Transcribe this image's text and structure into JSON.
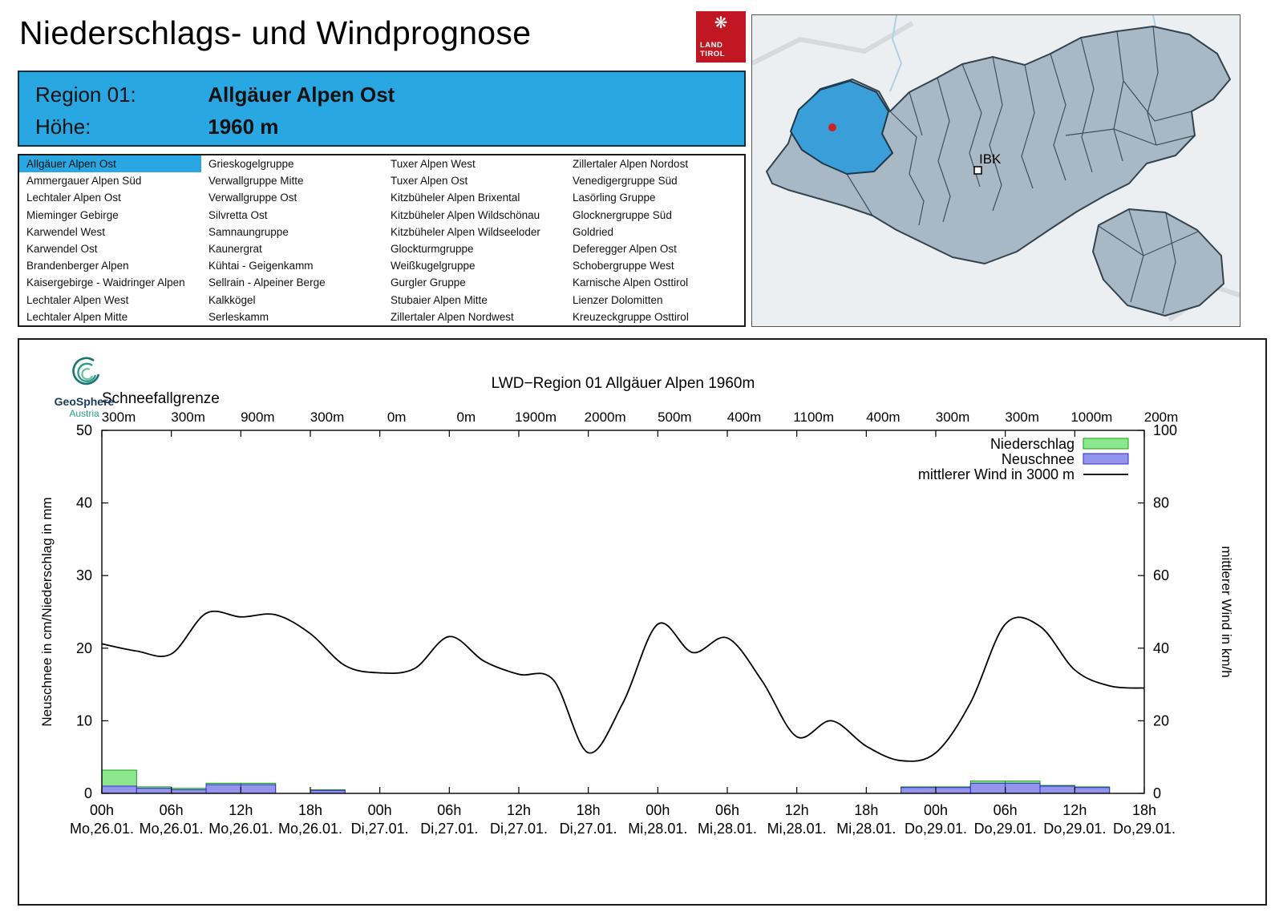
{
  "header": {
    "title": "Niederschlags- und Windprognose"
  },
  "badge": {
    "line1": "LAND",
    "line2": "TIROL",
    "color": "#c01722"
  },
  "map": {
    "marker_label": "IBK",
    "highlight_color": "#3a9fd8",
    "region_fill": "#a9b8c5",
    "border_color": "#33434f"
  },
  "region_header": {
    "label1": "Region 01:",
    "value1": "Allgäuer Alpen Ost",
    "label2": "Höhe:",
    "value2": "1960 m",
    "background": "#29a7e2"
  },
  "regions": {
    "selected": "Allgäuer Alpen Ost",
    "columns": [
      [
        "Allgäuer Alpen Ost",
        "Ammergauer Alpen Süd",
        "Lechtaler Alpen Ost",
        "Mieminger Gebirge",
        "Karwendel West",
        "Karwendel Ost",
        "Brandenberger Alpen",
        "Kaisergebirge - Waidringer Alpen",
        "Lechtaler Alpen West",
        "Lechtaler Alpen Mitte"
      ],
      [
        "Grieskogelgruppe",
        "Verwallgruppe Mitte",
        "Verwallgruppe Ost",
        "Silvretta Ost",
        "Samnaungruppe",
        "Kaunergrat",
        "Kühtai - Geigenkamm",
        "Sellrain - Alpeiner Berge",
        "Kalkkögel",
        "Serleskamm"
      ],
      [
        "Tuxer Alpen West",
        "Tuxer Alpen Ost",
        "Kitzbüheler Alpen Brixental",
        "Kitzbüheler Alpen Wildschönau",
        "Kitzbüheler Alpen Wildseeloder",
        "Glockturmgruppe",
        "Weißkugelgruppe",
        "Gurgler Gruppe",
        "Stubaier Alpen Mitte",
        "Zillertaler Alpen Nordwest"
      ],
      [
        "Zillertaler Alpen Nordost",
        "Venedigergruppe Süd",
        "Lasörling Gruppe",
        "Glocknergruppe Süd",
        "Goldried",
        "Deferegger Alpen Ost",
        "Schobergruppe West",
        "Karnische Alpen Osttirol",
        "Lienzer Dolomitten",
        "Kreuzeckgruppe Osttirol"
      ]
    ]
  },
  "logo": {
    "name": "GeoSphere",
    "sub": "Austria"
  },
  "chart_data": {
    "type": "bar",
    "title": "LWD−Region 01 Allgäuer Alpen 1960m",
    "snowline": {
      "label": "Schneefallgrenze",
      "values": [
        "300m",
        "300m",
        "900m",
        "300m",
        "0m",
        "0m",
        "1900m",
        "2000m",
        "500m",
        "400m",
        "1100m",
        "400m",
        "300m",
        "300m",
        "1000m",
        "200m"
      ]
    },
    "x_ticks": [
      {
        "hour": "00h",
        "date": "Mo,26.01."
      },
      {
        "hour": "06h",
        "date": "Mo,26.01."
      },
      {
        "hour": "12h",
        "date": "Mo,26.01."
      },
      {
        "hour": "18h",
        "date": "Mo,26.01."
      },
      {
        "hour": "00h",
        "date": "Di,27.01."
      },
      {
        "hour": "06h",
        "date": "Di,27.01."
      },
      {
        "hour": "12h",
        "date": "Di,27.01."
      },
      {
        "hour": "18h",
        "date": "Di,27.01."
      },
      {
        "hour": "00h",
        "date": "Mi,28.01."
      },
      {
        "hour": "06h",
        "date": "Mi,28.01."
      },
      {
        "hour": "12h",
        "date": "Mi,28.01."
      },
      {
        "hour": "18h",
        "date": "Mi,28.01."
      },
      {
        "hour": "00h",
        "date": "Do,29.01."
      },
      {
        "hour": "06h",
        "date": "Do,29.01."
      },
      {
        "hour": "12h",
        "date": "Do,29.01."
      },
      {
        "hour": "18h",
        "date": "Do,29.01."
      }
    ],
    "x_range_hours": [
      0,
      90
    ],
    "ylabel_left": "Neuschnee in cm/Niederschlag in mm",
    "ylabel_right": "mittlerer Wind in km/h",
    "ylim_left": [
      0,
      50
    ],
    "ylim_right": [
      0,
      100
    ],
    "yticks_left": [
      0,
      10,
      20,
      30,
      40,
      50
    ],
    "yticks_right": [
      0,
      20,
      40,
      60,
      80,
      100
    ],
    "legend": [
      {
        "label": "Niederschlag",
        "type": "box",
        "color": "#8DE88D",
        "border": "#18A018"
      },
      {
        "label": "Neuschnee",
        "type": "box",
        "color": "#9494EC",
        "border": "#2C2CC8"
      },
      {
        "label": "mittlerer Wind in 3000 m",
        "type": "line",
        "color": "#000000"
      }
    ],
    "colors": {
      "niederschlag": "#8DE88D",
      "niederschlag_border": "#18A018",
      "neuschnee": "#9494EC",
      "neuschnee_border": "#2C2CC8",
      "wind": "#000000"
    },
    "bars": {
      "interval_hours": 3,
      "niederschlag_mm": [
        3.2,
        0.9,
        0.7,
        1.4,
        1.4,
        0,
        0.5,
        0,
        0,
        0,
        0,
        0,
        0,
        0,
        0,
        0,
        0,
        0,
        0,
        0,
        0,
        0,
        0,
        0.9,
        0.9,
        1.7,
        1.7,
        1.1,
        0.9,
        0
      ],
      "neuschnee_cm": [
        1.0,
        0.7,
        0.5,
        1.2,
        1.2,
        0,
        0.4,
        0,
        0,
        0,
        0,
        0,
        0,
        0,
        0,
        0,
        0,
        0,
        0,
        0,
        0,
        0,
        0,
        0.8,
        0.8,
        1.4,
        1.4,
        1.0,
        0.8,
        0
      ]
    },
    "wind": {
      "name": "mittlerer Wind in 3000 m",
      "x_hours": [
        0,
        3,
        6,
        9,
        12,
        15,
        18,
        21,
        24,
        27,
        30,
        33,
        36,
        39,
        42,
        45,
        48,
        51,
        54,
        57,
        60,
        63,
        66,
        69,
        72,
        75,
        78,
        81,
        84,
        87,
        90
      ],
      "values_kmh": [
        41.2,
        39.2,
        38.4,
        49.6,
        48.6,
        49.2,
        44.0,
        35.2,
        33.2,
        34.4,
        43.2,
        36.4,
        32.8,
        31.2,
        11.2,
        25.0,
        46.6,
        38.8,
        42.8,
        31.0,
        15.6,
        20.0,
        13.0,
        9.0,
        11.2,
        25.0,
        46.6,
        46.0,
        34.0,
        29.6,
        29.0
      ]
    }
  }
}
